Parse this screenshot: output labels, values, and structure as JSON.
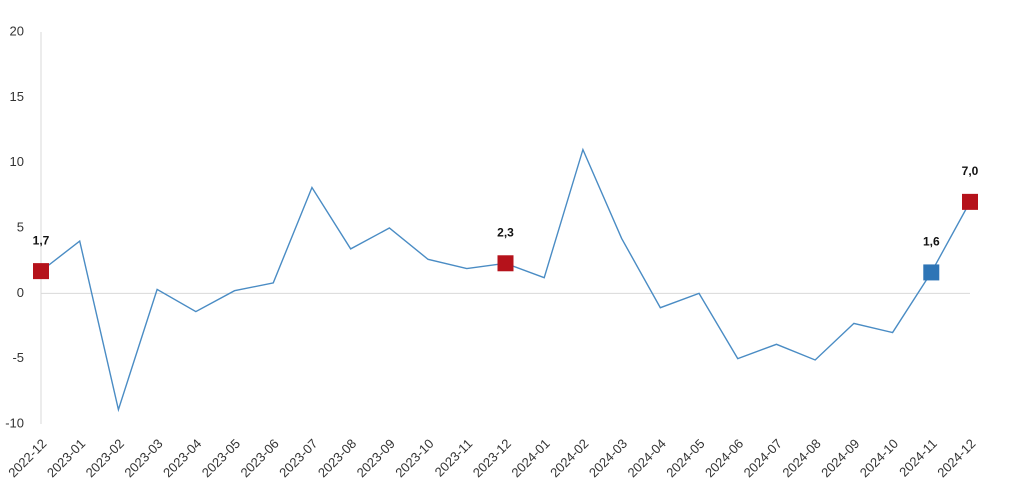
{
  "chart_data": {
    "type": "line",
    "categories": [
      "2022-12",
      "2023-01",
      "2023-02",
      "2023-03",
      "2023-04",
      "2023-05",
      "2023-06",
      "2023-07",
      "2023-08",
      "2023-09",
      "2023-10",
      "2023-11",
      "2023-12",
      "2024-01",
      "2024-02",
      "2024-03",
      "2024-04",
      "2024-05",
      "2024-06",
      "2024-07",
      "2024-08",
      "2024-09",
      "2024-10",
      "2024-11",
      "2024-12"
    ],
    "series": [
      {
        "color": "#4a8cc4",
        "values": [
          1.7,
          4.0,
          -8.9,
          0.3,
          -1.4,
          0.2,
          0.8,
          8.1,
          3.4,
          5.0,
          2.6,
          1.9,
          2.3,
          1.2,
          11.0,
          4.2,
          -1.1,
          0.0,
          -5.0,
          -3.9,
          -5.1,
          -2.3,
          -3.0,
          1.6,
          7.0
        ],
        "value_labels": [
          "1,7",
          null,
          null,
          null,
          null,
          null,
          null,
          null,
          null,
          null,
          null,
          null,
          "2,3",
          null,
          null,
          null,
          null,
          null,
          null,
          null,
          null,
          null,
          null,
          "1,6",
          "7,0"
        ],
        "marker_colors": [
          "#b5121b",
          null,
          null,
          null,
          null,
          null,
          null,
          null,
          null,
          null,
          null,
          null,
          "#b5121b",
          null,
          null,
          null,
          null,
          null,
          null,
          null,
          null,
          null,
          null,
          "#2e75b6",
          "#b5121b"
        ]
      }
    ],
    "ylim": [
      -10,
      20
    ],
    "yticks": [
      -10,
      -5,
      0,
      5,
      10,
      15,
      20
    ],
    "grid": false,
    "zero_line": true
  }
}
